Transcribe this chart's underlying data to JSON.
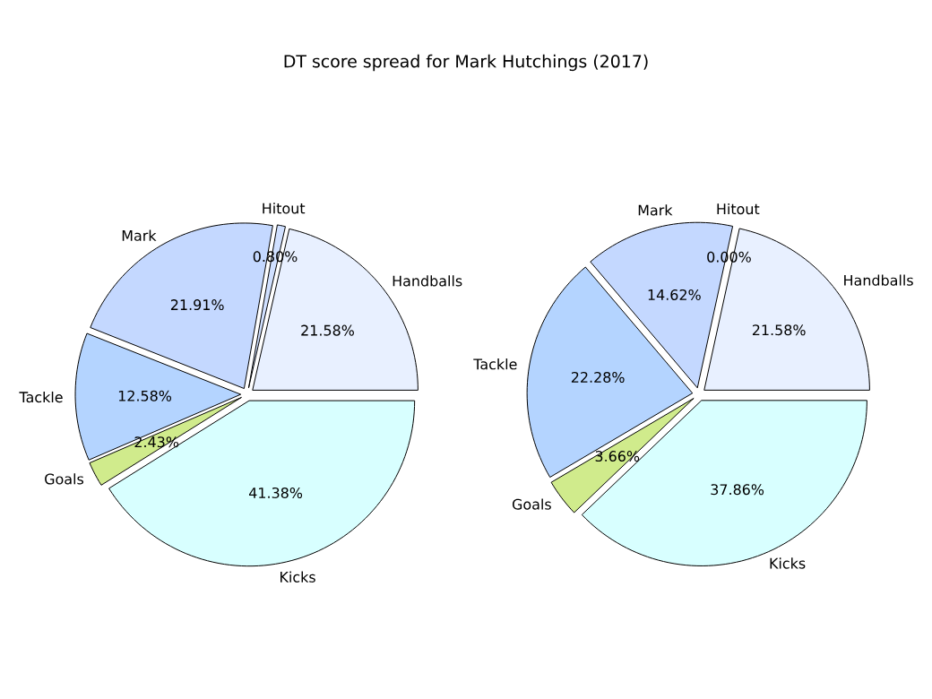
{
  "chart_data": [
    {
      "type": "pie",
      "title": "DT score spread for Mark Hutchings (2017)",
      "categories": [
        "Handballs",
        "Hitout",
        "Mark",
        "Tackle",
        "Goals",
        "Kicks"
      ],
      "values": [
        21.58,
        0.8,
        21.91,
        12.58,
        2.43,
        41.38
      ],
      "value_labels": [
        "21.58%",
        "0.80%",
        "21.91%",
        "12.58%",
        "2.43%",
        "41.38%"
      ],
      "colors": [
        "#e8f0ff",
        "#d0e0ff",
        "#c4d8ff",
        "#b4d4ff",
        "#d0eb8c",
        "#d8ffff"
      ]
    },
    {
      "type": "pie",
      "categories": [
        "Handballs",
        "Hitout",
        "Mark",
        "Tackle",
        "Goals",
        "Kicks"
      ],
      "values": [
        21.58,
        0.0,
        14.62,
        22.28,
        3.66,
        37.86
      ],
      "value_labels": [
        "21.58%",
        "0.00%",
        "14.62%",
        "22.28%",
        "3.66%",
        "37.86%"
      ],
      "colors": [
        "#e8f0ff",
        "#d0e0ff",
        "#c4d8ff",
        "#b4d4ff",
        "#d0eb8c",
        "#d8ffff"
      ]
    }
  ]
}
